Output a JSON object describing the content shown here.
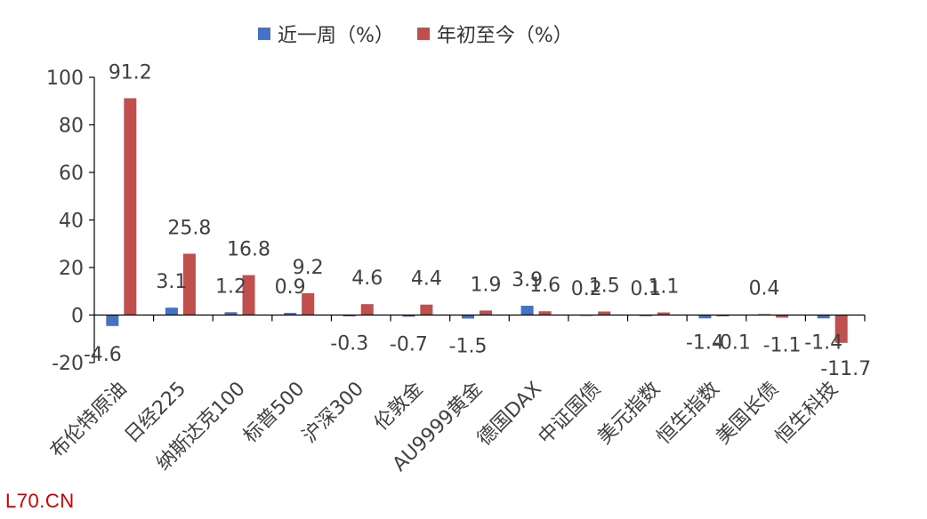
{
  "chart_data": {
    "type": "bar",
    "categories": [
      "布伦特原油",
      "日经225",
      "纳斯达克100",
      "标普500",
      "沪深300",
      "伦敦金",
      "AU9999黄金",
      "德国DAX",
      "中证国债",
      "美元指数",
      "恒生指数",
      "美国长债",
      "恒生科技"
    ],
    "series": [
      {
        "name": "近一周（%）",
        "color": "#4472c4",
        "values": [
          -4.6,
          3.1,
          1.2,
          0.9,
          -0.3,
          -0.7,
          -1.5,
          3.9,
          0.2,
          0.1,
          -1.4,
          0.4,
          -1.4
        ]
      },
      {
        "name": "年初至今（%）",
        "color": "#c0504d",
        "values": [
          91.2,
          25.8,
          16.8,
          9.2,
          4.6,
          4.4,
          1.9,
          1.6,
          1.5,
          1.1,
          -0.1,
          -1.1,
          -11.7
        ]
      }
    ],
    "ylim": [
      -20,
      100
    ],
    "yticks": [
      -20,
      0,
      20,
      40,
      60,
      80,
      100
    ],
    "grid": false,
    "legend_position": "top"
  },
  "watermark": "L70.CN"
}
